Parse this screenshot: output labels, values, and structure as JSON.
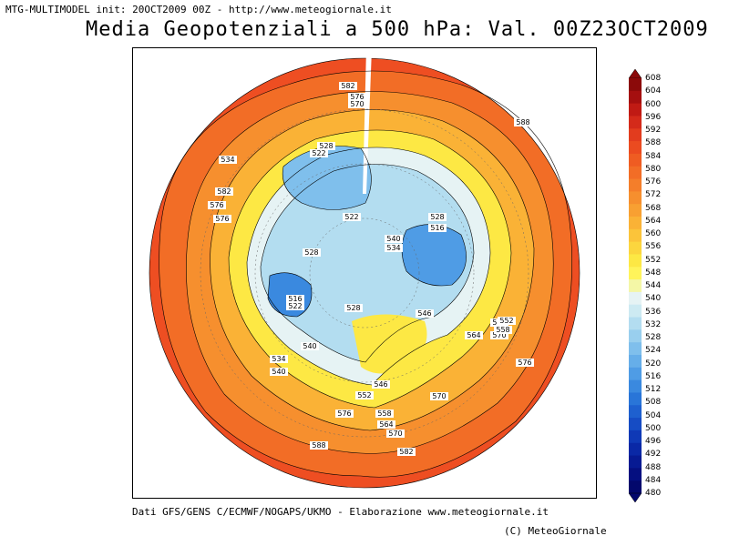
{
  "header": {
    "meta_text": "MTG-MULTIMODEL init: 20OCT2009 00Z - http://www.meteogiornale.it",
    "title": "Media Geopotenziali a 500 hPa: Val. 00Z23OCT2009"
  },
  "map": {
    "contour_labels": [
      "582",
      "576",
      "570",
      "588",
      "534",
      "528",
      "522",
      "528",
      "522",
      "516",
      "540",
      "534",
      "546",
      "528",
      "516",
      "522",
      "528",
      "540",
      "534",
      "540",
      "546",
      "552",
      "558",
      "564",
      "570",
      "582",
      "588",
      "576",
      "576",
      "570",
      "576",
      "552",
      "558",
      "564",
      "570",
      "576",
      "576",
      "582"
    ]
  },
  "colorbar": {
    "levels": [
      "608",
      "604",
      "600",
      "596",
      "592",
      "588",
      "584",
      "580",
      "576",
      "572",
      "568",
      "564",
      "560",
      "556",
      "552",
      "548",
      "544",
      "540",
      "536",
      "532",
      "528",
      "524",
      "520",
      "516",
      "512",
      "508",
      "504",
      "500",
      "496",
      "492",
      "488",
      "484",
      "480"
    ],
    "colors": [
      "#8b0a0a",
      "#a50f0f",
      "#c01a14",
      "#d42a1a",
      "#e23c1e",
      "#eb4b20",
      "#ef5c22",
      "#f26d26",
      "#f47e2a",
      "#f68f2e",
      "#f8a032",
      "#fab236",
      "#fbc43a",
      "#fcd63e",
      "#fde844",
      "#fff45a",
      "#f4f7a6",
      "#e6f3f4",
      "#cdeaf2",
      "#b3ddf0",
      "#99cfee",
      "#7fbfec",
      "#66aee9",
      "#4f9ce5",
      "#3a89df",
      "#2975d8",
      "#1e60cf",
      "#164cc4",
      "#0f39b6",
      "#0a28a6",
      "#071a93",
      "#050f80",
      "#03086c"
    ]
  },
  "footer": {
    "sources": "Dati GFS/GENS C/ECMWF/NOGAPS/UKMO - Elaborazione www.meteogiornale.it",
    "credit": "(C) MeteoGiornale"
  }
}
